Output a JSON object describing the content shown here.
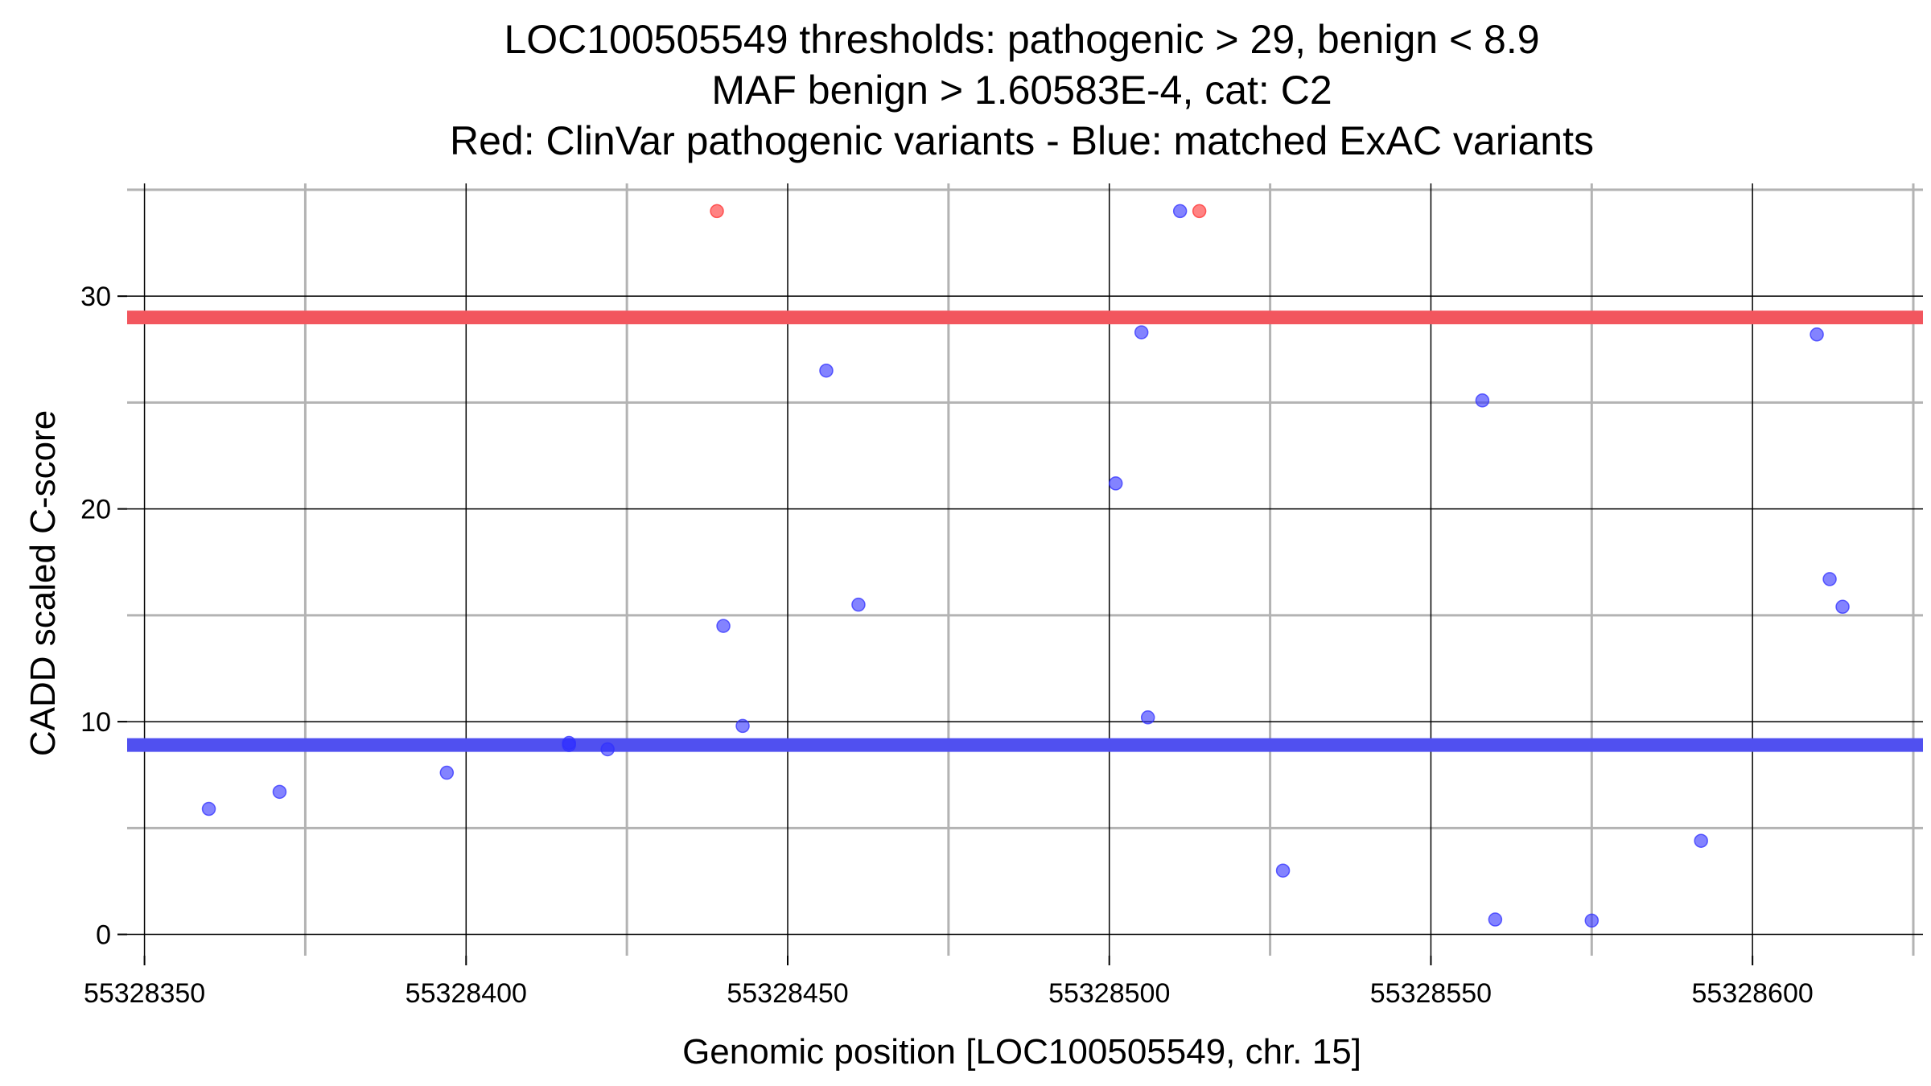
{
  "chart_data": {
    "type": "scatter",
    "title_lines": [
      "LOC100505549 thresholds: pathogenic > 29, benign < 8.9",
      "MAF benign > 1.60583E-4, cat: C2",
      "Red: ClinVar pathogenic variants - Blue: matched ExAC variants"
    ],
    "xlabel": "Genomic position [LOC100505549, chr. 15]",
    "ylabel": "CADD scaled C-score",
    "xlim": [
      55328347.3,
      55328626.5
    ],
    "ylim": [
      -1.0,
      35.3
    ],
    "x_ticks": [
      55328350,
      55328400,
      55328450,
      55328500,
      55328550,
      55328600
    ],
    "x_tick_labels": [
      "55328350",
      "55328400",
      "55328450",
      "55328500",
      "55328550",
      "55328600"
    ],
    "x_minor_grid": [
      55328375,
      55328425,
      55328475,
      55328525,
      55328575,
      55328625
    ],
    "y_ticks": [
      0,
      10,
      20,
      30
    ],
    "y_tick_labels": [
      "0",
      "10",
      "20",
      "30"
    ],
    "y_minor_grid": [
      5,
      15,
      25,
      35
    ],
    "thresholds": [
      {
        "name": "pathogenic",
        "value": 29,
        "color": "#f2565e"
      },
      {
        "name": "benign",
        "value": 8.9,
        "color": "#5050f0"
      }
    ],
    "series": [
      {
        "name": "ClinVar pathogenic variants",
        "color": "#ff3030",
        "points": [
          {
            "x": 55328439,
            "y": 34
          },
          {
            "x": 55328514,
            "y": 34
          }
        ]
      },
      {
        "name": "matched ExAC variants",
        "color": "#3030ff",
        "points": [
          {
            "x": 55328360,
            "y": 5.9
          },
          {
            "x": 55328371,
            "y": 6.7
          },
          {
            "x": 55328397,
            "y": 7.6
          },
          {
            "x": 55328416,
            "y": 8.9
          },
          {
            "x": 55328416,
            "y": 9.0
          },
          {
            "x": 55328422,
            "y": 8.7
          },
          {
            "x": 55328440,
            "y": 14.5
          },
          {
            "x": 55328443,
            "y": 9.8
          },
          {
            "x": 55328456,
            "y": 26.5
          },
          {
            "x": 55328461,
            "y": 15.5
          },
          {
            "x": 55328501,
            "y": 21.2
          },
          {
            "x": 55328505,
            "y": 28.3
          },
          {
            "x": 55328506,
            "y": 10.2
          },
          {
            "x": 55328511,
            "y": 34
          },
          {
            "x": 55328527,
            "y": 3.0
          },
          {
            "x": 55328558,
            "y": 25.1
          },
          {
            "x": 55328560,
            "y": 0.7
          },
          {
            "x": 55328575,
            "y": 0.65
          },
          {
            "x": 55328592,
            "y": 4.4
          },
          {
            "x": 55328610,
            "y": 28.2
          },
          {
            "x": 55328612,
            "y": 16.7
          },
          {
            "x": 55328614,
            "y": 15.4
          }
        ]
      }
    ]
  }
}
